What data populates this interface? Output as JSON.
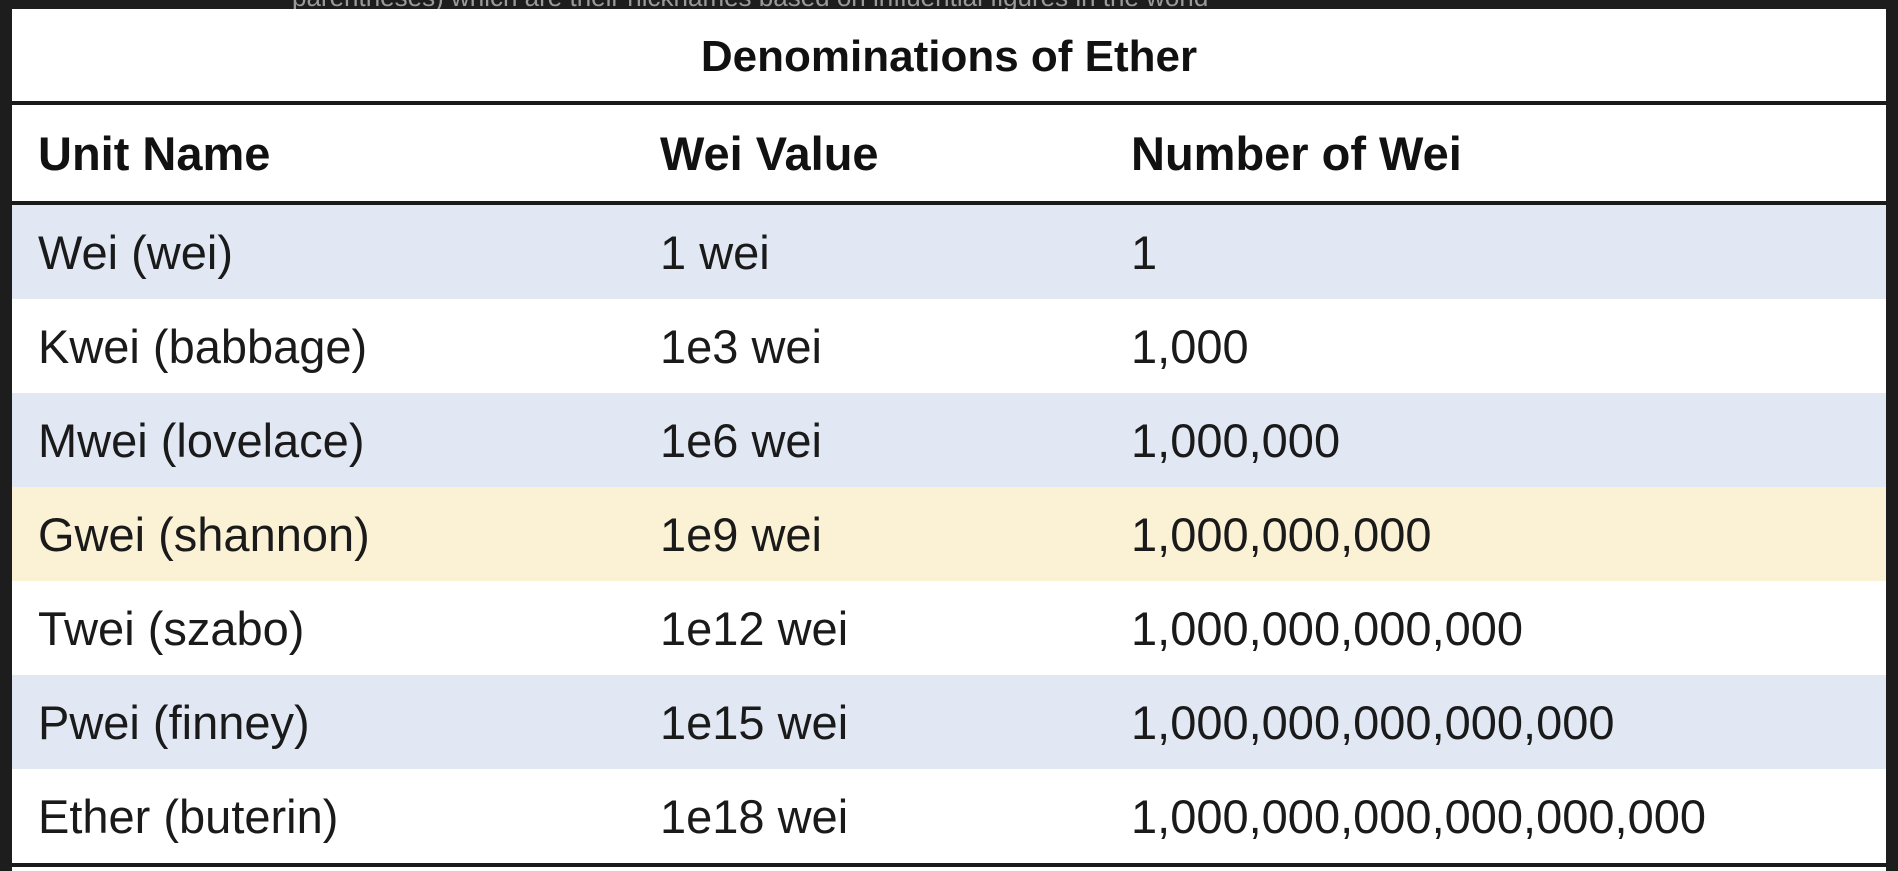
{
  "overflow_text": "parentheses) which are their nicknames based on influential figures in the world",
  "table": {
    "title": "Denominations of Ether",
    "columns": [
      "Unit Name",
      "Wei Value",
      "Number of Wei"
    ],
    "rows": [
      {
        "unit": "Wei (wei)",
        "wei_value": "1 wei",
        "number": "1",
        "style": "alt"
      },
      {
        "unit": "Kwei (babbage)",
        "wei_value": "1e3 wei",
        "number": "1,000",
        "style": "plain"
      },
      {
        "unit": "Mwei (lovelace)",
        "wei_value": "1e6 wei",
        "number": "1,000,000",
        "style": "alt"
      },
      {
        "unit": "Gwei (shannon)",
        "wei_value": "1e9 wei",
        "number": "1,000,000,000",
        "style": "highlight"
      },
      {
        "unit": "Twei (szabo)",
        "wei_value": "1e12 wei",
        "number": "1,000,000,000,000",
        "style": "plain"
      },
      {
        "unit": "Pwei (finney)",
        "wei_value": "1e15 wei",
        "number": "1,000,000,000,000,000",
        "style": "alt"
      },
      {
        "unit": "Ether (buterin)",
        "wei_value": "1e18 wei",
        "number": "1,000,000,000,000,000,000",
        "style": "plain"
      }
    ]
  },
  "colors": {
    "alt_row": "#e1e8f4",
    "highlight_row": "#fbf1d5",
    "background": "#1d1d1d"
  }
}
